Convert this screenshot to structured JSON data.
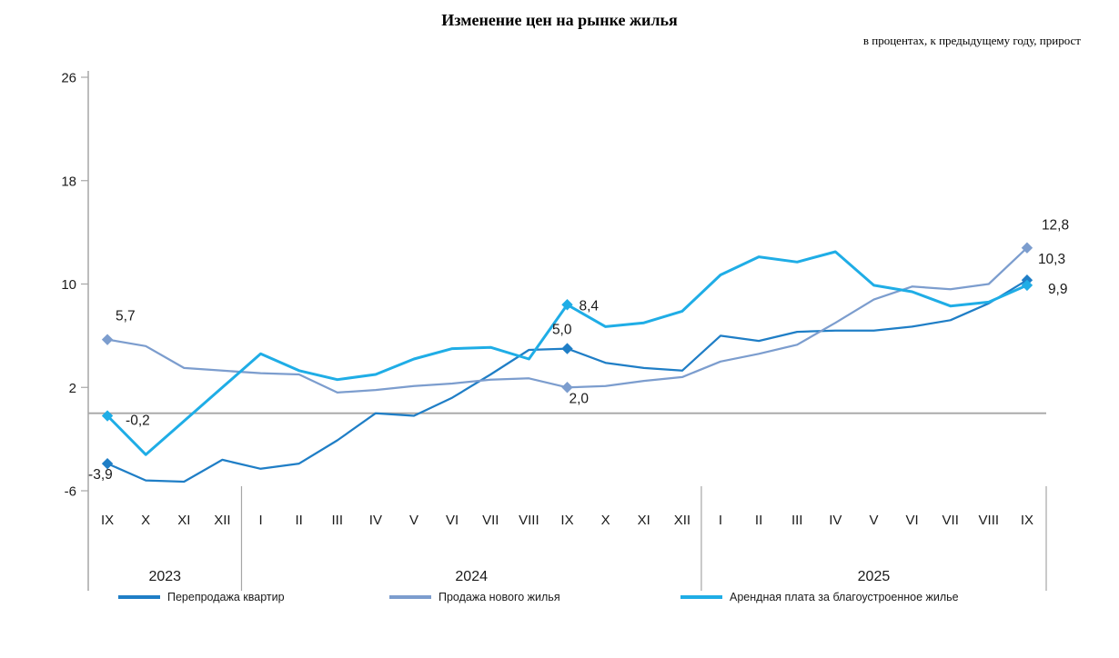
{
  "chart_data": {
    "type": "line",
    "title": "Изменение цен на рынке жилья",
    "subtitle": "в процентах, к предыдущему году, прирост",
    "x_categories": [
      "IX",
      "X",
      "XI",
      "XII",
      "I",
      "II",
      "III",
      "IV",
      "V",
      "VI",
      "VII",
      "VIII",
      "IX",
      "X",
      "XI",
      "XII",
      "I",
      "II",
      "III",
      "IV",
      "V",
      "VI",
      "VII",
      "VIII",
      "IX"
    ],
    "year_groups": [
      {
        "label": "2023",
        "start": 0,
        "end": 3
      },
      {
        "label": "2024",
        "start": 4,
        "end": 15
      },
      {
        "label": "2025",
        "start": 16,
        "end": 24
      }
    ],
    "y_axis": {
      "min": -6,
      "max": 26,
      "ticks": [
        26,
        18,
        10,
        2,
        -6
      ]
    },
    "grid": "off",
    "legend_position": "bottom",
    "axis_color": "#A6A6A6",
    "label_color": "#1A1A1A",
    "series": [
      {
        "name": "Перепродажа квартир",
        "color": "#1F7EC6",
        "width": 2.25,
        "values": [
          -3.9,
          -5.2,
          -5.3,
          -3.6,
          -4.3,
          -3.9,
          -2.1,
          0.0,
          -0.2,
          1.2,
          3.0,
          4.9,
          5.0,
          3.9,
          3.5,
          3.3,
          6.0,
          5.6,
          6.3,
          6.4,
          6.4,
          6.7,
          7.2,
          8.5,
          10.3
        ],
        "labeled_points": [
          {
            "index": 0,
            "label": "-3,9"
          },
          {
            "index": 12,
            "label": "5,0"
          },
          {
            "index": 24,
            "label": "10,3"
          }
        ]
      },
      {
        "name": "Продажа нового жилья",
        "color": "#7C9DCE",
        "width": 2.25,
        "values": [
          5.7,
          5.2,
          3.5,
          3.3,
          3.1,
          3.0,
          1.6,
          1.8,
          2.1,
          2.3,
          2.6,
          2.7,
          2.0,
          2.1,
          2.5,
          2.8,
          4.0,
          4.6,
          5.3,
          7.0,
          8.8,
          9.8,
          9.6,
          10.0,
          12.8
        ],
        "labeled_points": [
          {
            "index": 0,
            "label": "5,7"
          },
          {
            "index": 12,
            "label": "2,0"
          },
          {
            "index": 24,
            "label": "12,8"
          }
        ]
      },
      {
        "name": "Арендная плата за благоустроенное жилье",
        "color": "#1FADE6",
        "width": 3,
        "values": [
          -0.2,
          -3.2,
          -0.6,
          2.0,
          4.6,
          3.3,
          2.6,
          3.0,
          4.2,
          5.0,
          5.1,
          4.2,
          8.4,
          6.7,
          7.0,
          7.9,
          10.7,
          12.1,
          11.7,
          12.5,
          9.9,
          9.4,
          8.3,
          8.6,
          9.9
        ],
        "labeled_points": [
          {
            "index": 0,
            "label": "-0,2"
          },
          {
            "index": 12,
            "label": "8,4"
          },
          {
            "index": 24,
            "label": "9,9"
          }
        ]
      }
    ]
  }
}
